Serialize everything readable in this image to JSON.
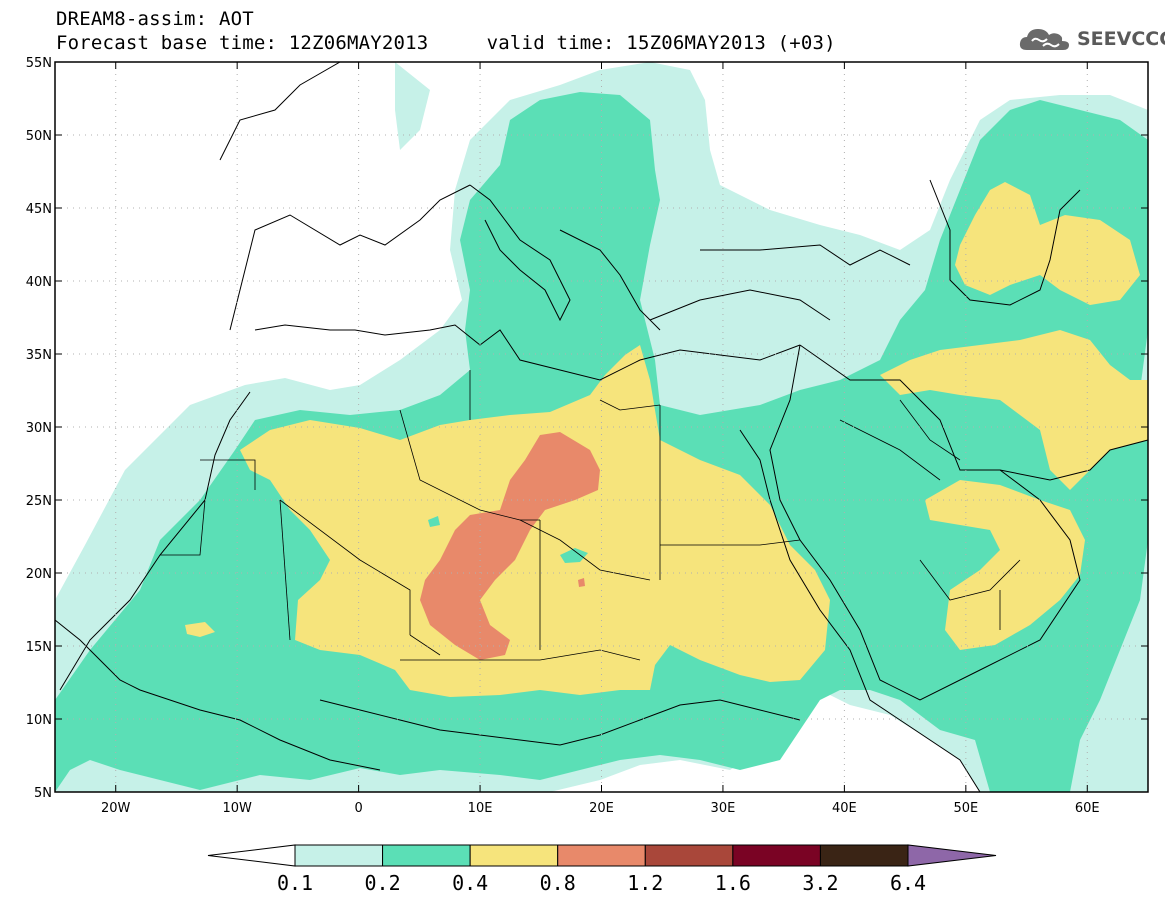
{
  "header": {
    "line1": "DREAM8-assim: AOT",
    "line2": "Forecast base time: 12Z06MAY2013     valid time: 15Z06MAY2013 (+03)",
    "logo_text": "SEEVCCC"
  },
  "map": {
    "lon_range": [
      -25,
      65
    ],
    "lat_range": [
      5,
      55
    ],
    "lon_ticks": [
      {
        "lon": -20,
        "label": "20W"
      },
      {
        "lon": -10,
        "label": "10W"
      },
      {
        "lon": 0,
        "label": "0"
      },
      {
        "lon": 10,
        "label": "10E"
      },
      {
        "lon": 20,
        "label": "20E"
      },
      {
        "lon": 30,
        "label": "30E"
      },
      {
        "lon": 40,
        "label": "40E"
      },
      {
        "lon": 50,
        "label": "50E"
      },
      {
        "lon": 60,
        "label": "60E"
      }
    ],
    "lat_ticks": [
      {
        "lat": 5,
        "label": "5N"
      },
      {
        "lat": 10,
        "label": "10N"
      },
      {
        "lat": 15,
        "label": "15N"
      },
      {
        "lat": 20,
        "label": "20N"
      },
      {
        "lat": 25,
        "label": "25N"
      },
      {
        "lat": 30,
        "label": "30N"
      },
      {
        "lat": 35,
        "label": "35N"
      },
      {
        "lat": 40,
        "label": "40N"
      },
      {
        "lat": 45,
        "label": "45N"
      },
      {
        "lat": 50,
        "label": "50N"
      },
      {
        "lat": 55,
        "label": "55N"
      }
    ],
    "grid_lines": "dotted"
  },
  "colorbar": {
    "labels": [
      "0.1",
      "0.2",
      "0.4",
      "0.8",
      "1.2",
      "1.6",
      "3.2",
      "6.4"
    ],
    "colors": [
      "#ffffff",
      "#c6f1e8",
      "#5bdfb6",
      "#f6e47c",
      "#e8896a",
      "#a9473a",
      "#7a0324",
      "#3a2415",
      "#8e67a8"
    ]
  }
}
